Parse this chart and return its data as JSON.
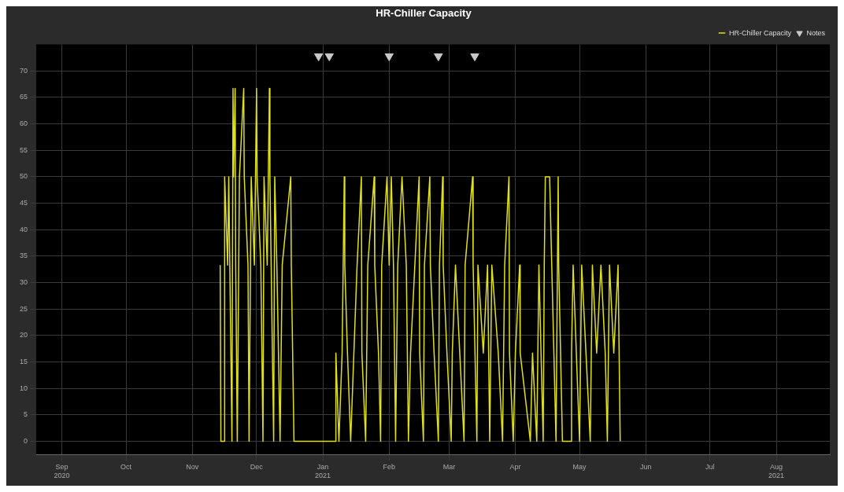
{
  "chart_data": {
    "type": "line",
    "title": "HR-Chiller Capacity",
    "legend": "top right",
    "grid": true,
    "xlim": [
      "2020-08-20",
      "2021-08-26"
    ],
    "xticks": [
      {
        "value": "2020-09-01",
        "label": "Sep\n2020"
      },
      {
        "value": "2020-10-01",
        "label": "Oct"
      },
      {
        "value": "2020-11-01",
        "label": "Nov"
      },
      {
        "value": "2020-12-01",
        "label": "Dec"
      },
      {
        "value": "2021-01-01",
        "label": "Jan\n2021"
      },
      {
        "value": "2021-02-01",
        "label": "Feb"
      },
      {
        "value": "2021-03-01",
        "label": "Mar"
      },
      {
        "value": "2021-04-01",
        "label": "Apr"
      },
      {
        "value": "2021-05-01",
        "label": "May"
      },
      {
        "value": "2021-06-01",
        "label": "Jun"
      },
      {
        "value": "2021-07-01",
        "label": "Jul"
      },
      {
        "value": "2021-08-01",
        "label": "Aug\n2021"
      }
    ],
    "ylim": [
      -2.5,
      75
    ],
    "yticks": [
      0,
      5,
      10,
      15,
      20,
      25,
      30,
      35,
      40,
      45,
      50,
      55,
      60,
      65,
      70
    ],
    "series": [
      {
        "name": "HR-Chiller Capacity",
        "color": "#e0e01a",
        "marker": "none",
        "x": [
          "2020-11-14T00:00",
          "2020-11-14T08:00",
          "2020-11-16T00:00",
          "2020-11-16T02:00",
          "2020-11-17T12:00",
          "2020-11-18T00:00",
          "2020-11-19T12:00",
          "2020-11-20T00:00",
          "2020-11-20T06:00",
          "2020-11-21T00:00",
          "2020-11-21T06:00",
          "2020-11-22T00:00",
          "2020-11-23T00:00",
          "2020-11-25T00:00",
          "2020-11-25T06:00",
          "2020-11-27T00:00",
          "2020-11-27T12:00",
          "2020-11-28T12:00",
          "2020-11-30T00:00",
          "2020-12-01T00:00",
          "2020-12-01T06:00",
          "2020-12-03T00:00",
          "2020-12-04T00:00",
          "2020-12-04T12:00",
          "2020-12-06T00:00",
          "2020-12-07T00:00",
          "2020-12-07T06:00",
          "2020-12-09T00:00",
          "2020-12-09T12:00",
          "2020-12-10T12:00",
          "2020-12-12T00:00",
          "2020-12-13T00:00",
          "2020-12-17T00:00",
          "2020-12-17T06:00",
          "2020-12-18T12:00",
          "2021-01-07T00:00",
          "2021-01-07T02:00",
          "2021-01-08T12:00",
          "2021-01-10T00:00",
          "2021-01-11T00:00",
          "2021-01-11T06:00",
          "2021-01-12T12:00",
          "2021-01-14T00:00",
          "2021-01-15T12:00",
          "2021-01-17T00:00",
          "2021-01-19T00:00",
          "2021-01-19T06:00",
          "2021-01-21T00:00",
          "2021-01-22T00:00",
          "2021-01-25T00:00",
          "2021-01-25T06:00",
          "2021-01-27T00:00",
          "2021-01-28T00:00",
          "2021-01-28T12:00",
          "2021-01-31T00:00",
          "2021-02-01T00:00",
          "2021-02-02T00:00",
          "2021-02-03T00:00",
          "2021-02-04T00:00",
          "2021-02-05T00:00",
          "2021-02-07T00:00",
          "2021-02-09T00:00",
          "2021-02-10T00:00",
          "2021-02-11T00:00",
          "2021-02-13T00:00",
          "2021-02-15T00:00",
          "2021-02-15T06:00",
          "2021-02-17T00:00",
          "2021-02-17T12:00",
          "2021-02-20T00:00",
          "2021-02-20T06:00",
          "2021-02-22T00:00",
          "2021-02-24T00:00",
          "2021-02-24T12:00",
          "2021-02-26T00:00",
          "2021-02-26T06:00",
          "2021-02-28T00:00",
          "2021-03-02T00:00",
          "2021-03-02T12:00",
          "2021-03-04T00:00",
          "2021-03-06T00:00",
          "2021-03-08T00:00",
          "2021-03-08T12:00",
          "2021-03-12T00:00",
          "2021-03-12T06:00",
          "2021-03-14T00:00",
          "2021-03-14T12:00",
          "2021-03-17T00:00",
          "2021-03-19T00:00",
          "2021-03-20T00:00",
          "2021-03-21T00:00",
          "2021-03-24T00:00",
          "2021-03-26T00:00",
          "2021-03-27T00:00",
          "2021-03-29T00:00",
          "2021-03-29T06:00",
          "2021-03-31T00:00",
          "2021-04-01T00:00",
          "2021-04-03T00:00",
          "2021-04-03T06:00",
          "2021-04-08T00:00",
          "2021-04-09T00:00",
          "2021-04-11T00:00",
          "2021-04-12T00:00",
          "2021-04-14T00:00",
          "2021-04-14T12:00",
          "2021-04-15T00:00",
          "2021-04-17T00:00",
          "2021-04-18T00:00",
          "2021-04-20T00:00",
          "2021-04-21T00:00",
          "2021-04-21T06:00",
          "2021-04-23T00:00",
          "2021-04-27T00:00",
          "2021-04-27T06:00",
          "2021-04-28T00:00",
          "2021-05-01T00:00",
          "2021-05-02T00:00",
          "2021-05-04T00:00",
          "2021-05-06T00:00",
          "2021-05-07T00:00",
          "2021-05-09T00:00",
          "2021-05-11T00:00",
          "2021-05-13T00:00",
          "2021-05-14T00:00",
          "2021-05-15T00:00",
          "2021-05-17T00:00",
          "2021-05-19T00:00",
          "2021-05-20T00:00"
        ],
        "values": [
          33.3,
          0,
          0,
          50,
          33.3,
          50,
          0,
          66.7,
          50,
          66.7,
          33.3,
          0,
          50,
          66.7,
          50,
          33.3,
          0,
          50,
          33.3,
          66.7,
          50,
          33.3,
          0,
          50,
          33.3,
          66.7,
          50,
          0,
          50,
          33.3,
          0,
          33.3,
          50,
          33.3,
          0,
          0,
          16.7,
          0,
          16.7,
          50,
          33.3,
          16.7,
          0,
          16.7,
          33.3,
          50,
          16.7,
          0,
          33.3,
          50,
          33.3,
          16.7,
          0,
          33.3,
          50,
          33.3,
          50,
          33.3,
          0,
          33.3,
          50,
          33.3,
          0,
          16.7,
          33.3,
          50,
          16.7,
          0,
          33.3,
          50,
          33.3,
          16.7,
          0,
          33.3,
          50,
          33.3,
          16.7,
          0,
          16.7,
          33.3,
          16.7,
          0,
          33.3,
          50,
          33.3,
          0,
          33.3,
          16.7,
          33.3,
          0,
          33.3,
          16.7,
          0,
          33.3,
          50,
          16.7,
          0,
          16.7,
          33.3,
          16.7,
          0,
          16.7,
          0,
          33.3,
          0,
          33.3,
          50,
          50,
          33.3,
          0,
          50,
          33.3,
          0,
          0,
          16.7,
          33.3,
          0,
          33.3,
          16.7,
          0,
          33.3,
          16.7,
          33.3,
          16.7,
          0,
          33.3,
          16.7,
          33.3,
          0
        ]
      },
      {
        "name": "Notes",
        "type": "scatter",
        "color": "#c8c8c8",
        "marker": "triangle",
        "x": [
          "2020-12-30T00:00",
          "2021-01-04T00:00",
          "2021-02-01T00:00",
          "2021-02-24T00:00",
          "2021-03-13T00:00"
        ],
        "values": [
          72.8,
          72.8,
          72.8,
          72.8,
          72.8
        ]
      }
    ]
  }
}
